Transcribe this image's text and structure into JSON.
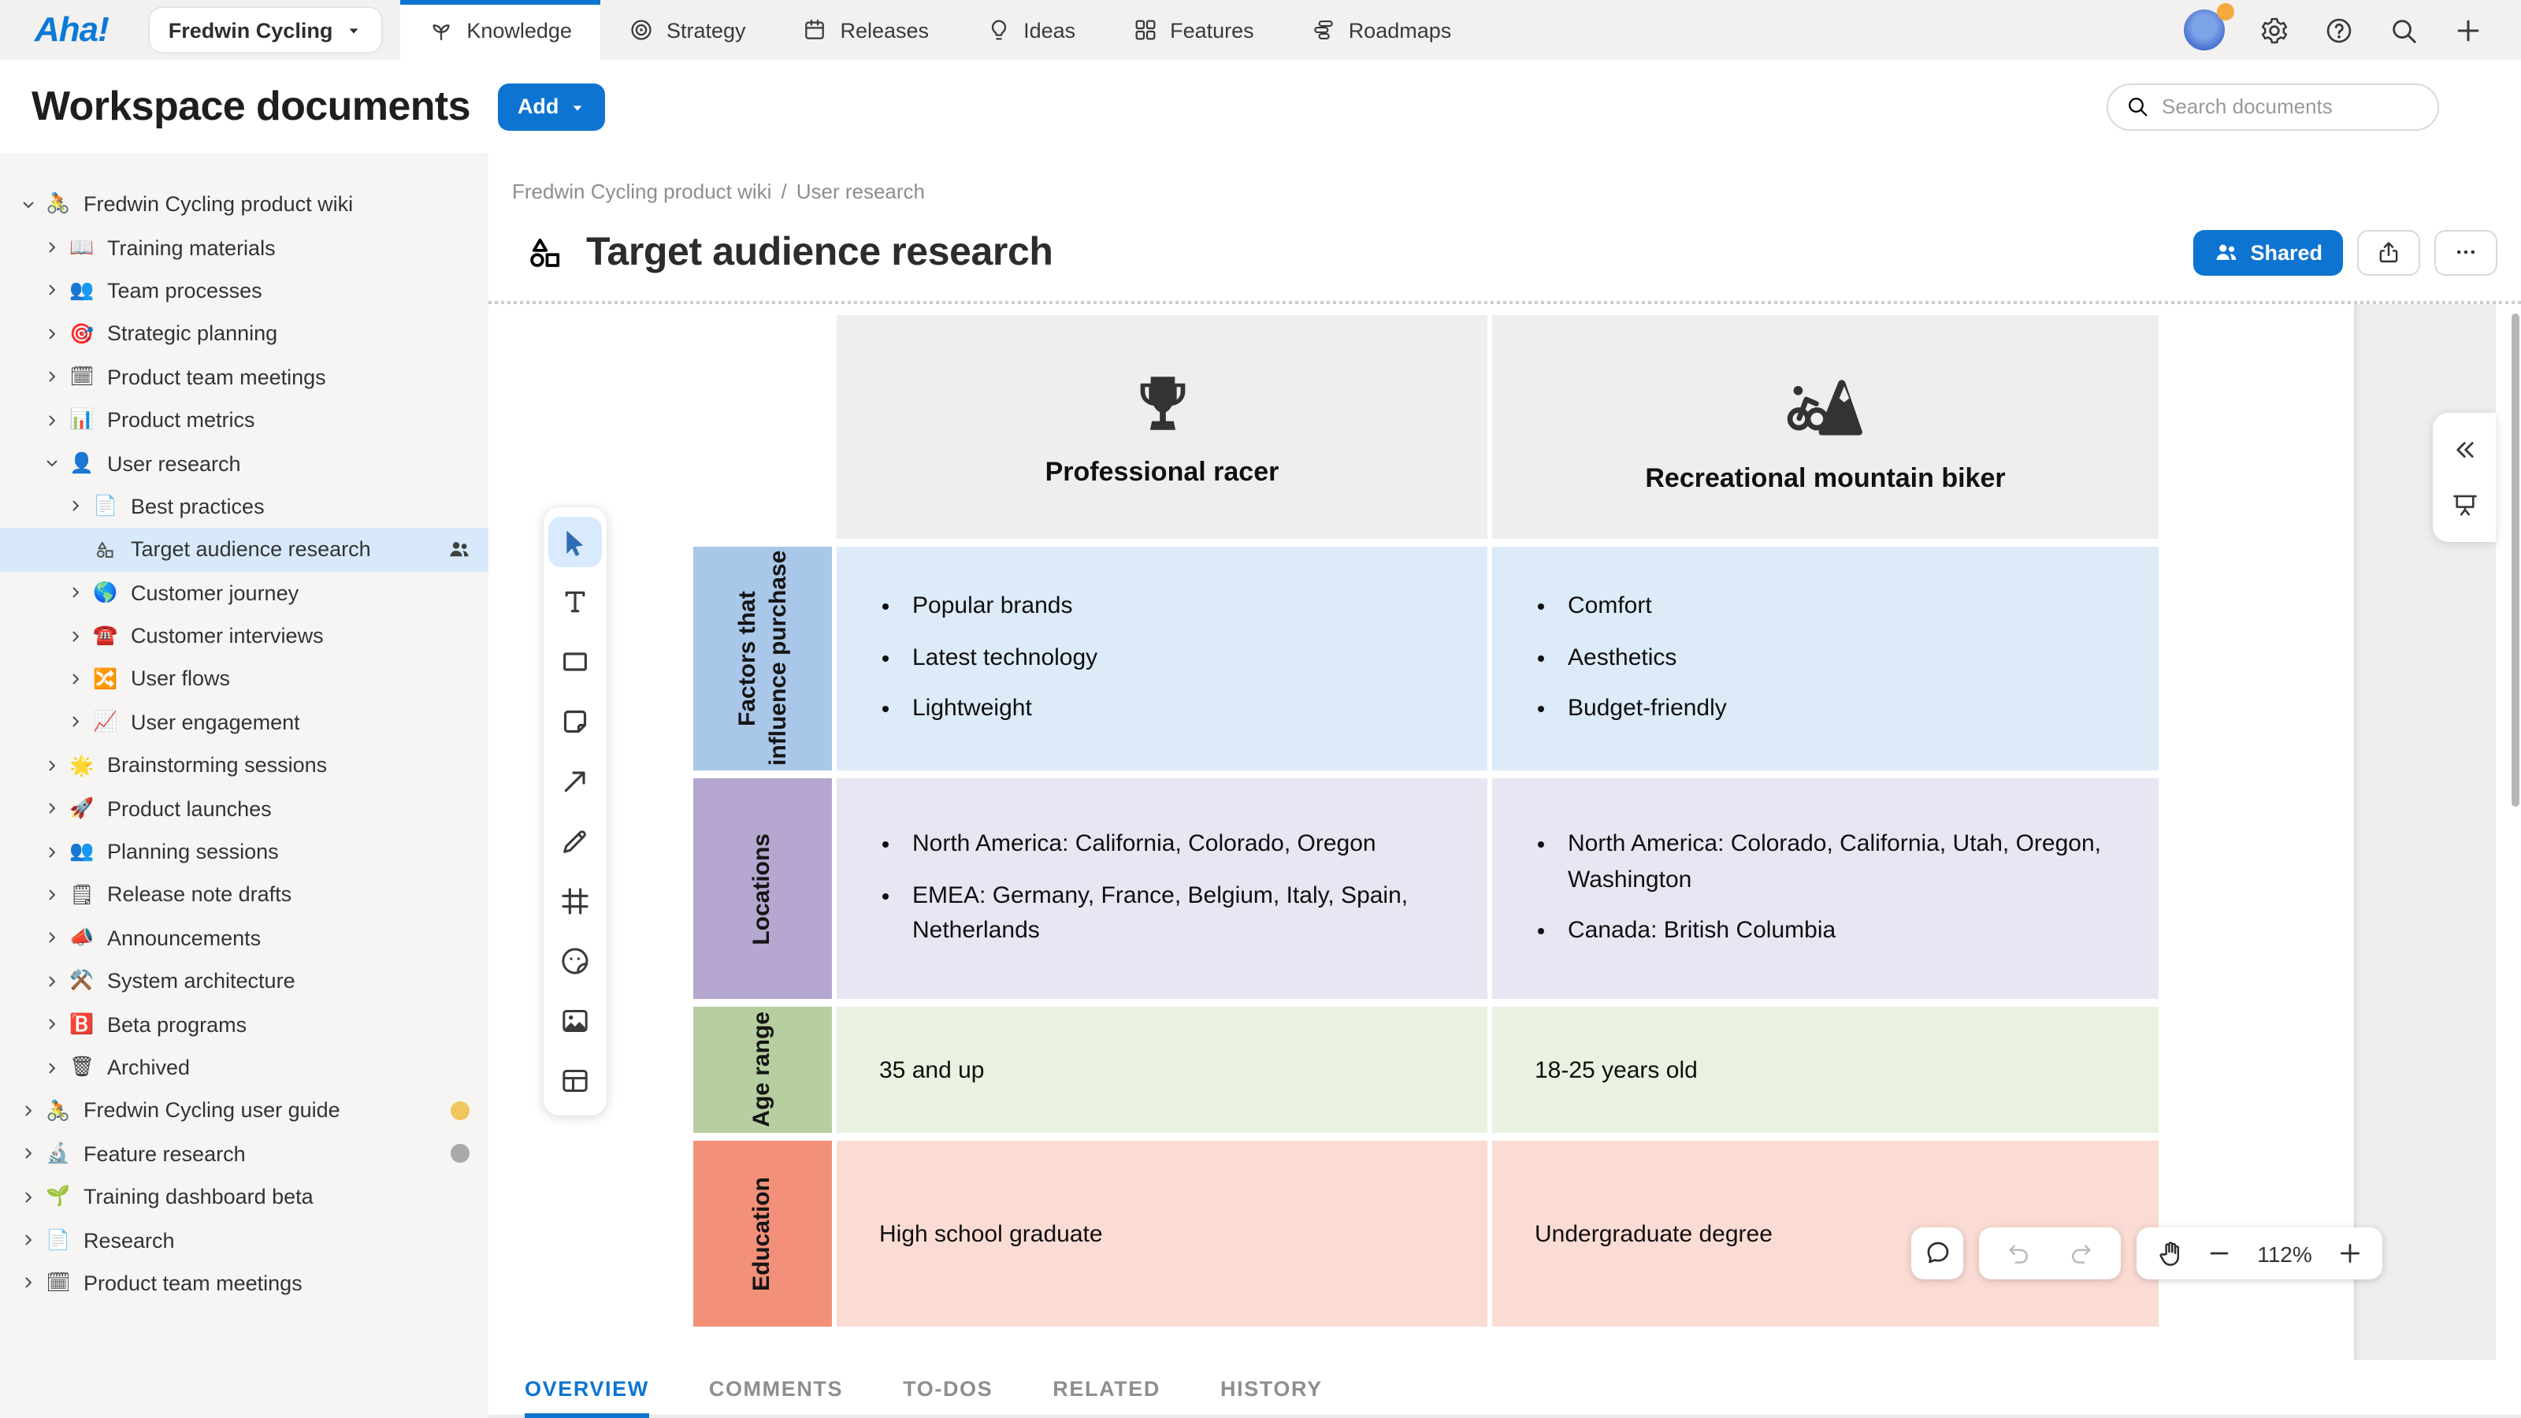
{
  "topnav": {
    "logo": "Aha!",
    "workspace_switcher": "Fredwin Cycling",
    "tabs": [
      {
        "label": "Knowledge",
        "icon": "knowledge",
        "active": true
      },
      {
        "label": "Strategy",
        "icon": "strategy",
        "active": false
      },
      {
        "label": "Releases",
        "icon": "releases",
        "active": false
      },
      {
        "label": "Ideas",
        "icon": "ideas",
        "active": false
      },
      {
        "label": "Features",
        "icon": "features",
        "active": false
      },
      {
        "label": "Roadmaps",
        "icon": "roadmaps",
        "active": false
      }
    ]
  },
  "page_header": {
    "title": "Workspace documents",
    "add_button": "Add",
    "search_placeholder": "Search documents"
  },
  "sidebar": {
    "items": [
      {
        "label": "Fredwin Cycling product wiki",
        "icon": "🚴",
        "level": 0,
        "chevron": "down"
      },
      {
        "label": "Training materials",
        "icon": "📖",
        "level": 1,
        "chevron": "right"
      },
      {
        "label": "Team processes",
        "icon": "👥",
        "level": 1,
        "chevron": "right"
      },
      {
        "label": "Strategic planning",
        "icon": "🎯",
        "level": 1,
        "chevron": "right"
      },
      {
        "label": "Product team meetings",
        "icon": "🗓",
        "level": 1,
        "chevron": "right"
      },
      {
        "label": "Product metrics",
        "icon": "📊",
        "level": 1,
        "chevron": "right"
      },
      {
        "label": "User research",
        "icon": "👤",
        "level": 1,
        "chevron": "down"
      },
      {
        "label": "Best practices",
        "icon": "📄",
        "level": 2,
        "chevron": "right"
      },
      {
        "label": "Target audience research",
        "icon": "whiteboard",
        "level": 2,
        "chevron": "none",
        "selected": true,
        "shared_badge": true
      },
      {
        "label": "Customer journey",
        "icon": "🌎",
        "level": 2,
        "chevron": "right"
      },
      {
        "label": "Customer interviews",
        "icon": "☎️",
        "level": 2,
        "chevron": "right"
      },
      {
        "label": "User flows",
        "icon": "🔀",
        "level": 2,
        "chevron": "right"
      },
      {
        "label": "User engagement",
        "icon": "📈",
        "level": 2,
        "chevron": "right"
      },
      {
        "label": "Brainstorming sessions",
        "icon": "🌟",
        "level": 1,
        "chevron": "right"
      },
      {
        "label": "Product launches",
        "icon": "🚀",
        "level": 1,
        "chevron": "right"
      },
      {
        "label": "Planning sessions",
        "icon": "👥",
        "level": 1,
        "chevron": "right"
      },
      {
        "label": "Release note drafts",
        "icon": "🗒",
        "level": 1,
        "chevron": "right"
      },
      {
        "label": "Announcements",
        "icon": "📣",
        "level": 1,
        "chevron": "right"
      },
      {
        "label": "System architecture",
        "icon": "⚒️",
        "level": 1,
        "chevron": "right"
      },
      {
        "label": "Beta programs",
        "icon": "🅱️",
        "level": 1,
        "chevron": "right"
      },
      {
        "label": "Archived",
        "icon": "🗑",
        "level": 1,
        "chevron": "right"
      },
      {
        "label": "Fredwin Cycling user guide",
        "icon": "🚴",
        "level": 0,
        "chevron": "right",
        "dot": "#f0c75e"
      },
      {
        "label": "Feature research",
        "icon": "🔬",
        "level": 0,
        "chevron": "right",
        "dot": "#a9a9a9"
      },
      {
        "label": "Training dashboard beta",
        "icon": "🌱",
        "level": 0,
        "chevron": "right"
      },
      {
        "label": "Research",
        "icon": "📄",
        "level": 0,
        "chevron": "right"
      },
      {
        "label": "Product team meetings",
        "icon": "🗓",
        "level": 0,
        "chevron": "right"
      }
    ]
  },
  "document": {
    "breadcrumb": [
      "Fredwin Cycling product wiki",
      "User research"
    ],
    "title": "Target audience research",
    "shared_button": "Shared",
    "tabs": [
      "OVERVIEW",
      "COMMENTS",
      "TO-DOS",
      "RELATED",
      "HISTORY"
    ],
    "active_tab": "OVERVIEW"
  },
  "whiteboard": {
    "tools": [
      "select",
      "text",
      "shape",
      "sticky-note",
      "connector",
      "pen",
      "frame",
      "sticker",
      "image",
      "table"
    ],
    "active_tool": "select",
    "zoom_level": "112%",
    "table": {
      "columns": [
        {
          "icon": "trophy",
          "label": "Professional racer"
        },
        {
          "icon": "mountain-biker",
          "label": "Recreational mountain biker"
        }
      ],
      "rows": [
        {
          "label": "Factors that influence purchase",
          "label_color": "#a9c7e8",
          "cell_color": "#ddeaf8",
          "cells": [
            {
              "bullets": [
                "Popular brands",
                "Latest technology",
                "Lightweight"
              ]
            },
            {
              "bullets": [
                "Comfort",
                "Aesthetics",
                "Budget-friendly"
              ]
            }
          ]
        },
        {
          "label": "Locations",
          "label_color": "#b5a7cf",
          "cell_color": "#eae5f2",
          "cells": [
            {
              "bullets": [
                "North America: California, Colorado, Oregon",
                "EMEA: Germany, France, Belgium, Italy, Spain, Netherlands"
              ]
            },
            {
              "bullets": [
                "North America: Colorado, California, Utah, Oregon, Washington",
                "Canada: British Columbia"
              ]
            }
          ]
        },
        {
          "label": "Age range",
          "label_color": "#b7cfa0",
          "cell_color": "#e9f1e0",
          "cells": [
            {
              "text": "35 and up"
            },
            {
              "text": "18-25 years old"
            }
          ]
        },
        {
          "label": "Education",
          "label_color": "#f29079",
          "cell_color": "#fbdcd4",
          "cells": [
            {
              "text": "High school graduate"
            },
            {
              "text": "Undergraduate degree"
            }
          ]
        }
      ]
    }
  },
  "colors": {
    "accent_blue": "#0d74d1",
    "selected_item_bg": "#d7e9fb",
    "header_cell_bg": "#efeeec"
  }
}
